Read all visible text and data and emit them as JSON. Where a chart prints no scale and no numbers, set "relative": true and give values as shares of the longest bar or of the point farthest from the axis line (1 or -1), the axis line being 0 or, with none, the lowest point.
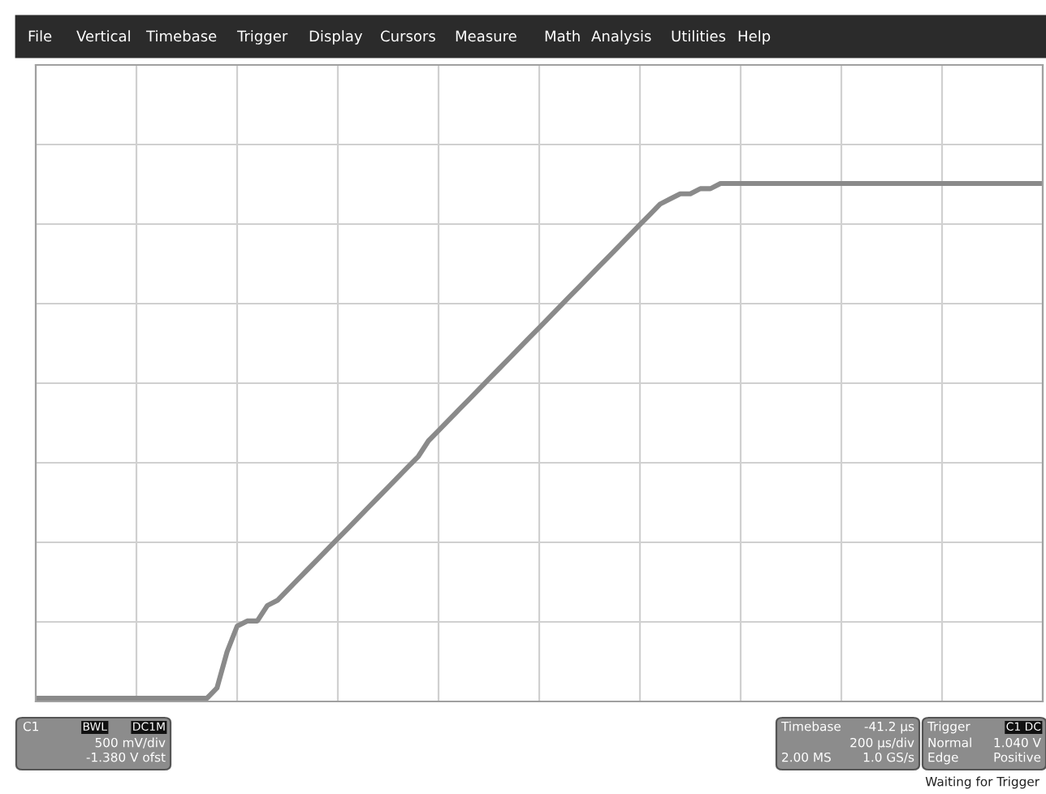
{
  "chart_data": {
    "type": "line",
    "relative": true,
    "grid": true,
    "color": "#8a8a8a",
    "categories": [
      null,
      null,
      null,
      null,
      null,
      null,
      null,
      null,
      null,
      null,
      null,
      null,
      null,
      null,
      null,
      null,
      null,
      null,
      null,
      null,
      null,
      null,
      null,
      null,
      null,
      null,
      null,
      null,
      null,
      null,
      null,
      null,
      null,
      null,
      null,
      null,
      null,
      null,
      null,
      null,
      null,
      null,
      null,
      null,
      null,
      null,
      null,
      null,
      null,
      null,
      null,
      null,
      null,
      null,
      null,
      null,
      null,
      null,
      null,
      null,
      null,
      null,
      null,
      null,
      null,
      null,
      null,
      null,
      null,
      null,
      null,
      null,
      null,
      null,
      null,
      null,
      null,
      null,
      null,
      null,
      null,
      null,
      null,
      null,
      null,
      null,
      null,
      null,
      null,
      null,
      null,
      null,
      null,
      null,
      null,
      null,
      null,
      null,
      null,
      null,
      null
    ],
    "values": [
      0,
      0,
      0,
      0,
      0,
      0,
      0,
      0,
      0,
      0,
      0,
      0,
      0,
      0,
      0,
      0,
      0,
      0,
      0.02,
      0.09,
      0.14,
      0.15,
      0.15,
      0.18,
      0.19,
      0.21,
      0.23,
      0.25,
      0.27,
      0.29,
      0.31,
      0.33,
      0.35,
      0.37,
      0.39,
      0.41,
      0.43,
      0.45,
      0.47,
      0.5,
      0.52,
      0.54,
      0.56,
      0.58,
      0.6,
      0.62,
      0.64,
      0.66,
      0.68,
      0.7,
      0.72,
      0.74,
      0.76,
      0.78,
      0.8,
      0.82,
      0.84,
      0.86,
      0.88,
      0.9,
      0.92,
      0.94,
      0.96,
      0.97,
      0.98,
      0.98,
      0.99,
      0.99,
      1,
      1,
      1,
      1,
      1,
      1,
      1,
      1,
      1,
      1,
      1,
      1,
      1,
      1,
      1,
      1,
      1,
      1,
      1,
      1,
      1,
      1,
      1,
      1,
      1,
      1,
      1,
      1,
      1,
      1,
      1,
      1,
      1
    ],
    "annotations": [
      "File",
      "Vertical",
      "Timebase",
      "Trigger",
      "Display",
      "Cursors",
      "Measure",
      "Math",
      "Analysis",
      "Utilities",
      "Help",
      "C1",
      "BWL",
      "DC1M",
      "500 mV/div",
      "-1.380 V ofst",
      "Timebase",
      "-41.2 µs",
      "200 µs/div",
      "2.00 MS",
      "1.0 GS/s",
      "Trigger",
      "C1 DC",
      "Normal",
      "1.040 V",
      "Edge",
      "Positive",
      "Waiting for Trigger"
    ]
  }
}
